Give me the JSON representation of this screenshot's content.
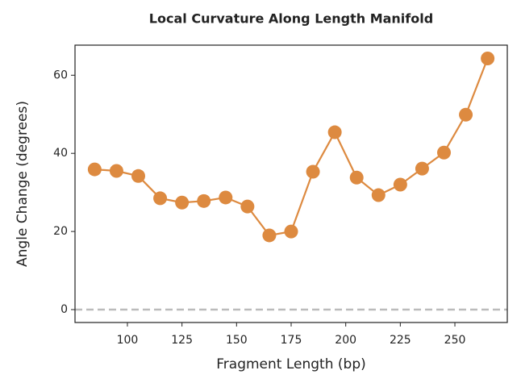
{
  "chart_data": {
    "type": "line",
    "title": "Local Curvature Along Length Manifold",
    "xlabel": "Fragment Length (bp)",
    "ylabel": "Angle Change (degrees)",
    "x": [
      85,
      95,
      105,
      115,
      125,
      135,
      145,
      155,
      165,
      175,
      185,
      195,
      205,
      215,
      225,
      235,
      245,
      255,
      265
    ],
    "series": [
      {
        "name": "Angle change",
        "color": "#dd8a40",
        "values": [
          35.9,
          35.5,
          34.2,
          28.5,
          27.4,
          27.8,
          28.7,
          26.4,
          19.0,
          20.0,
          35.3,
          45.4,
          33.8,
          29.3,
          32.0,
          36.1,
          40.2,
          49.9,
          64.3
        ]
      }
    ],
    "xlim": [
      76,
      274
    ],
    "xticks": [
      100,
      125,
      150,
      175,
      200,
      225,
      250
    ],
    "ylim": [
      -3.3,
      67.7
    ],
    "yticks": [
      0,
      20,
      40,
      60
    ],
    "hline": 0,
    "hline_color": "#bbbbbb"
  }
}
